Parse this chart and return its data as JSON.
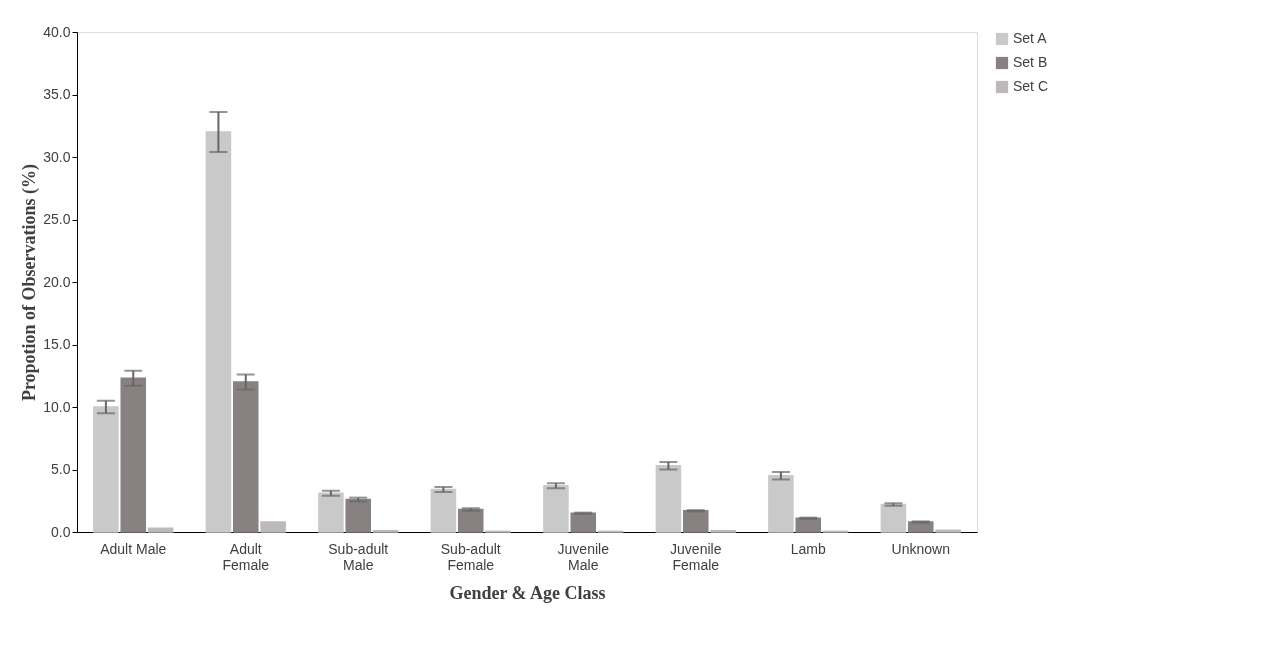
{
  "chart_data": {
    "type": "bar",
    "xlabel": "Gender & Age Class",
    "ylabel": "Propotion of Observations (%)",
    "categories": [
      "Adult Male",
      "Adult Female",
      "Sub-adult Male",
      "Sub-adult Female",
      "Juvenile Male",
      "Juvenile Female",
      "Lamb",
      "Unknown"
    ],
    "series": [
      {
        "name": "Set A",
        "color": "#c9c9c9",
        "values": [
          10.0,
          32.0,
          3.1,
          3.4,
          3.7,
          5.3,
          4.5,
          2.2
        ],
        "errors": [
          0.5,
          1.6,
          0.2,
          0.2,
          0.2,
          0.3,
          0.3,
          0.1
        ]
      },
      {
        "name": "Set  B",
        "color": "#878281",
        "values": [
          12.3,
          12.0,
          2.6,
          1.8,
          1.5,
          1.7,
          1.1,
          0.8
        ],
        "errors": [
          0.6,
          0.6,
          0.15,
          0.1,
          0.05,
          0.05,
          0.05,
          0.05
        ]
      },
      {
        "name": "Set C",
        "color": "#bdb9b9",
        "values": [
          0.3,
          0.8,
          0.1,
          0.05,
          0.05,
          0.1,
          0.05,
          0.15
        ]
      }
    ],
    "ylim": [
      0,
      40
    ],
    "yticks": [
      {
        "value": 0,
        "label": "0.0"
      },
      {
        "value": 5,
        "label": "5.0"
      },
      {
        "value": 10,
        "label": "10.0"
      },
      {
        "value": 15,
        "label": "15.0"
      },
      {
        "value": 20,
        "label": "20.0"
      },
      {
        "value": 25,
        "label": "25.0"
      },
      {
        "value": 30,
        "label": "30.0"
      },
      {
        "value": 35,
        "label": "35.0"
      },
      {
        "value": 40,
        "label": "40.0"
      }
    ],
    "grid": false,
    "legend": "right"
  }
}
